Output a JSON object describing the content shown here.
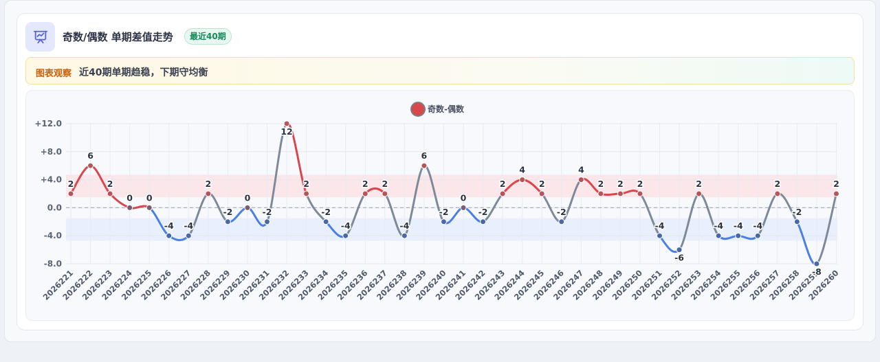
{
  "header": {
    "icon": "chart-presentation-icon",
    "title": "奇数/偶数 单期差值走势",
    "badge": "最近40期"
  },
  "notice": {
    "tag": "图表观察",
    "text": "近40期单期趋稳，下期守均衡"
  },
  "colors": {
    "positive": "#d9464b",
    "negative": "#4c7fe3",
    "neutral": "#7e8a99",
    "positive_band": "#fbe3e6",
    "negative_band": "#e6eefd",
    "accent": "#5b63d8"
  },
  "chart_data": {
    "type": "line",
    "legend": {
      "position": "top-center"
    },
    "ylim": [
      -8,
      12
    ],
    "yticks": [
      -8,
      -4,
      0,
      4,
      8,
      12
    ],
    "ytick_labels": [
      "-8.0",
      "-4.0",
      "0.0",
      "+4.0",
      "+8.0",
      "+12.0"
    ],
    "grid": true,
    "bands": [
      {
        "from": 1.5,
        "to": 4.7,
        "color": "positive"
      },
      {
        "from": -4.7,
        "to": -1.5,
        "color": "negative"
      }
    ],
    "zero_line": {
      "value": 0,
      "style": "dashed"
    },
    "categories": [
      "2026221",
      "2026222",
      "2026223",
      "2026224",
      "2026225",
      "2026226",
      "2026227",
      "2026228",
      "2026229",
      "2026230",
      "2026231",
      "2026232",
      "2026233",
      "2026234",
      "2026235",
      "2026236",
      "2026237",
      "2026238",
      "2026239",
      "2026240",
      "2026241",
      "2026242",
      "2026243",
      "2026244",
      "2026245",
      "2026246",
      "2026247",
      "2026248",
      "2026249",
      "2026250",
      "2026251",
      "2026252",
      "2026253",
      "2026254",
      "2026255",
      "2026256",
      "2026257",
      "2026258",
      "2026259",
      "2026260"
    ],
    "series": [
      {
        "name": "奇数-偶数",
        "values": [
          2,
          6,
          2,
          0,
          0,
          -4,
          -4,
          2,
          -2,
          0,
          -2,
          12,
          2,
          -2,
          -4,
          2,
          2,
          -4,
          6,
          -2,
          0,
          -2,
          2,
          4,
          2,
          -2,
          4,
          2,
          2,
          2,
          -4,
          -6,
          2,
          -4,
          -4,
          -4,
          2,
          -2,
          -8,
          2
        ]
      }
    ]
  }
}
